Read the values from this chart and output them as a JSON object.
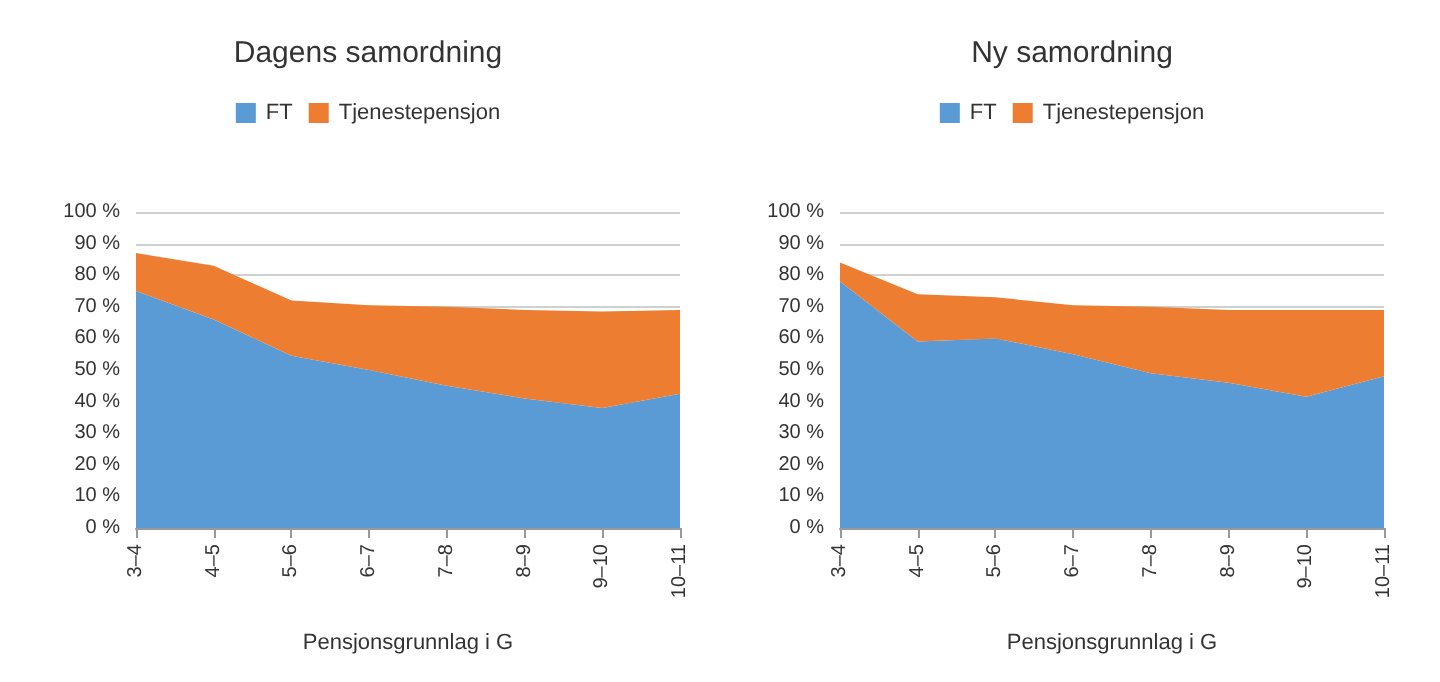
{
  "chart_data": [
    {
      "type": "area",
      "title": "Dagens samordning",
      "xlabel": "Pensjonsgrunnlag i G",
      "categories": [
        "3–4",
        "4–5",
        "5–6",
        "6–7",
        "7–8",
        "8–9",
        "9–10",
        "10–11"
      ],
      "stacked": true,
      "grid": "y",
      "legend": "top",
      "ylim": [
        0,
        100
      ],
      "yticks": [
        {
          "value": 0,
          "label": "0 %"
        },
        {
          "value": 10,
          "label": "10 %"
        },
        {
          "value": 20,
          "label": "20 %"
        },
        {
          "value": 30,
          "label": "30 %"
        },
        {
          "value": 40,
          "label": "40 %"
        },
        {
          "value": 50,
          "label": "50 %"
        },
        {
          "value": 60,
          "label": "60 %"
        },
        {
          "value": 70,
          "label": "70 %"
        },
        {
          "value": 80,
          "label": "80 %"
        },
        {
          "value": 90,
          "label": "90 %"
        },
        {
          "value": 100,
          "label": "100 %"
        }
      ],
      "series": [
        {
          "name": "FT",
          "color": "#5b9bd5",
          "values": [
            75,
            66,
            54.5,
            50,
            45,
            41,
            38,
            42.5
          ]
        },
        {
          "name": "Tjenestepensjon",
          "color": "#ed7d31",
          "values": [
            12,
            17,
            17.5,
            20.5,
            25,
            28,
            30.5,
            26.5
          ]
        }
      ]
    },
    {
      "type": "area",
      "title": "Ny samordning",
      "xlabel": "Pensjonsgrunnlag i G",
      "categories": [
        "3–4",
        "4–5",
        "5–6",
        "6–7",
        "7–8",
        "8–9",
        "9–10",
        "10–11"
      ],
      "stacked": true,
      "grid": "y",
      "legend": "top",
      "ylim": [
        0,
        100
      ],
      "yticks": [
        {
          "value": 0,
          "label": "0 %"
        },
        {
          "value": 10,
          "label": "10 %"
        },
        {
          "value": 20,
          "label": "20 %"
        },
        {
          "value": 30,
          "label": "30 %"
        },
        {
          "value": 40,
          "label": "40 %"
        },
        {
          "value": 50,
          "label": "50 %"
        },
        {
          "value": 60,
          "label": "60 %"
        },
        {
          "value": 70,
          "label": "70 %"
        },
        {
          "value": 80,
          "label": "80 %"
        },
        {
          "value": 90,
          "label": "90 %"
        },
        {
          "value": 100,
          "label": "100 %"
        }
      ],
      "series": [
        {
          "name": "FT",
          "color": "#5b9bd5",
          "values": [
            78,
            59,
            60,
            55,
            49,
            46,
            41.5,
            48
          ]
        },
        {
          "name": "Tjenestepensjon",
          "color": "#ed7d31",
          "values": [
            6,
            15,
            13,
            15.5,
            21,
            23,
            27.5,
            21
          ]
        }
      ]
    }
  ]
}
